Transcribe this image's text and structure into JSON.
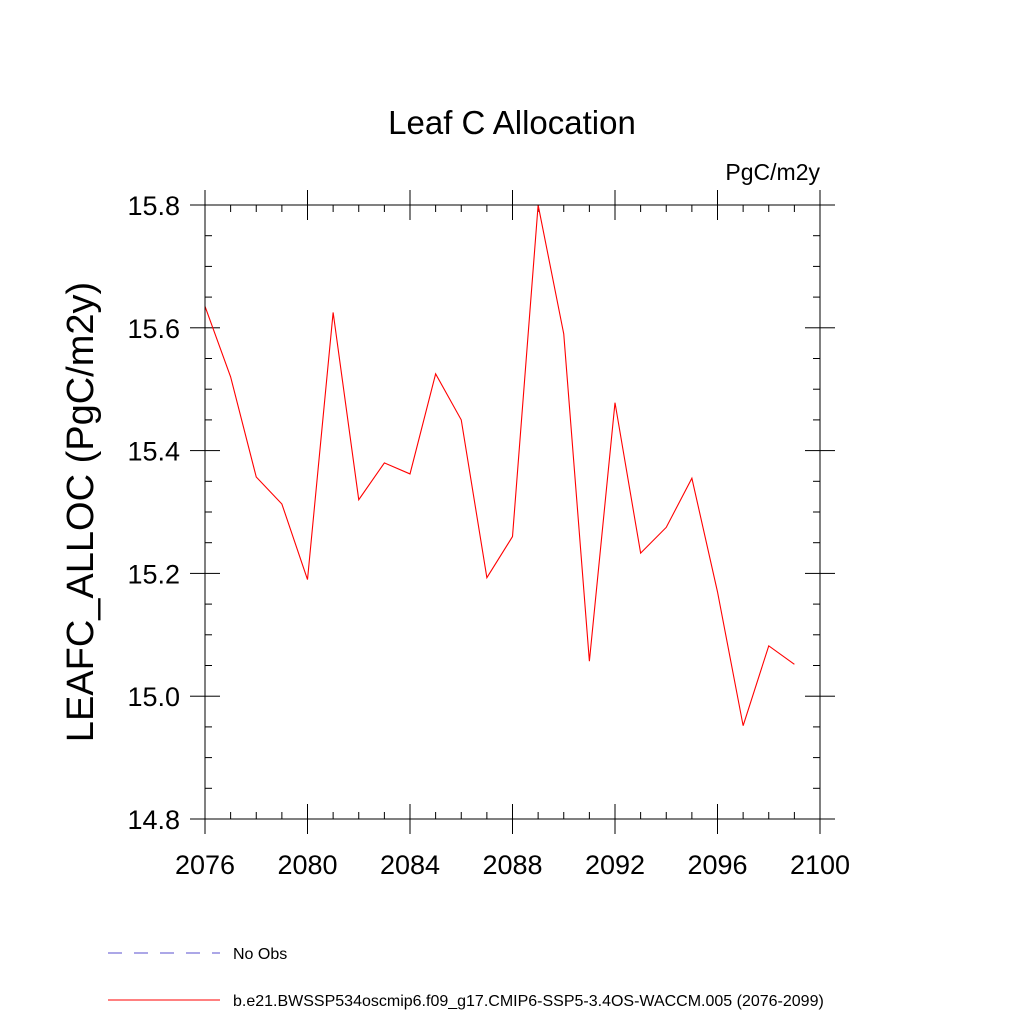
{
  "chart_data": {
    "type": "line",
    "title": "Leaf C Allocation",
    "units_label": "PgC/m2y",
    "xlabel": "",
    "ylabel": "LEAFC_ALLOC  (PgC/m2y)",
    "xlim": [
      2076,
      2100
    ],
    "ylim": [
      14.8,
      15.8
    ],
    "x_ticks": [
      2076,
      2080,
      2084,
      2088,
      2092,
      2096,
      2100
    ],
    "x_tick_labels": [
      "2076",
      "2080",
      "2084",
      "2088",
      "2092",
      "2096",
      "2100"
    ],
    "y_ticks": [
      14.8,
      15.0,
      15.2,
      15.4,
      15.6,
      15.8
    ],
    "y_tick_labels": [
      "14.8",
      "15.0",
      "15.2",
      "15.4",
      "15.6",
      "15.8"
    ],
    "x_minor_step": 1,
    "y_minor_step": 0.05,
    "legend_position": "bottom-left, below plot",
    "legend": [
      {
        "label": "No Obs",
        "color": "#5a4fcf",
        "style": "dashed"
      },
      {
        "label": "b.e21.BWSSP534oscmip6.f09_g17.CMIP6-SSP5-3.4OS-WACCM.005 (2076-2099)",
        "color": "#ff0000",
        "style": "solid"
      }
    ],
    "series": [
      {
        "name": "b.e21.BWSSP534oscmip6.f09_g17.CMIP6-SSP5-3.4OS-WACCM.005 (2076-2099)",
        "color": "#ff0000",
        "x": [
          2076,
          2077,
          2078,
          2079,
          2080,
          2081,
          2082,
          2083,
          2084,
          2085,
          2086,
          2087,
          2088,
          2089,
          2090,
          2091,
          2092,
          2093,
          2094,
          2095,
          2096,
          2097,
          2098,
          2099
        ],
        "values": [
          15.635,
          15.52,
          15.357,
          15.313,
          15.19,
          15.625,
          15.32,
          15.38,
          15.362,
          15.525,
          15.45,
          15.193,
          15.26,
          15.8,
          15.59,
          15.057,
          15.478,
          15.233,
          15.275,
          15.355,
          15.17,
          14.952,
          15.082,
          15.052
        ]
      }
    ]
  }
}
